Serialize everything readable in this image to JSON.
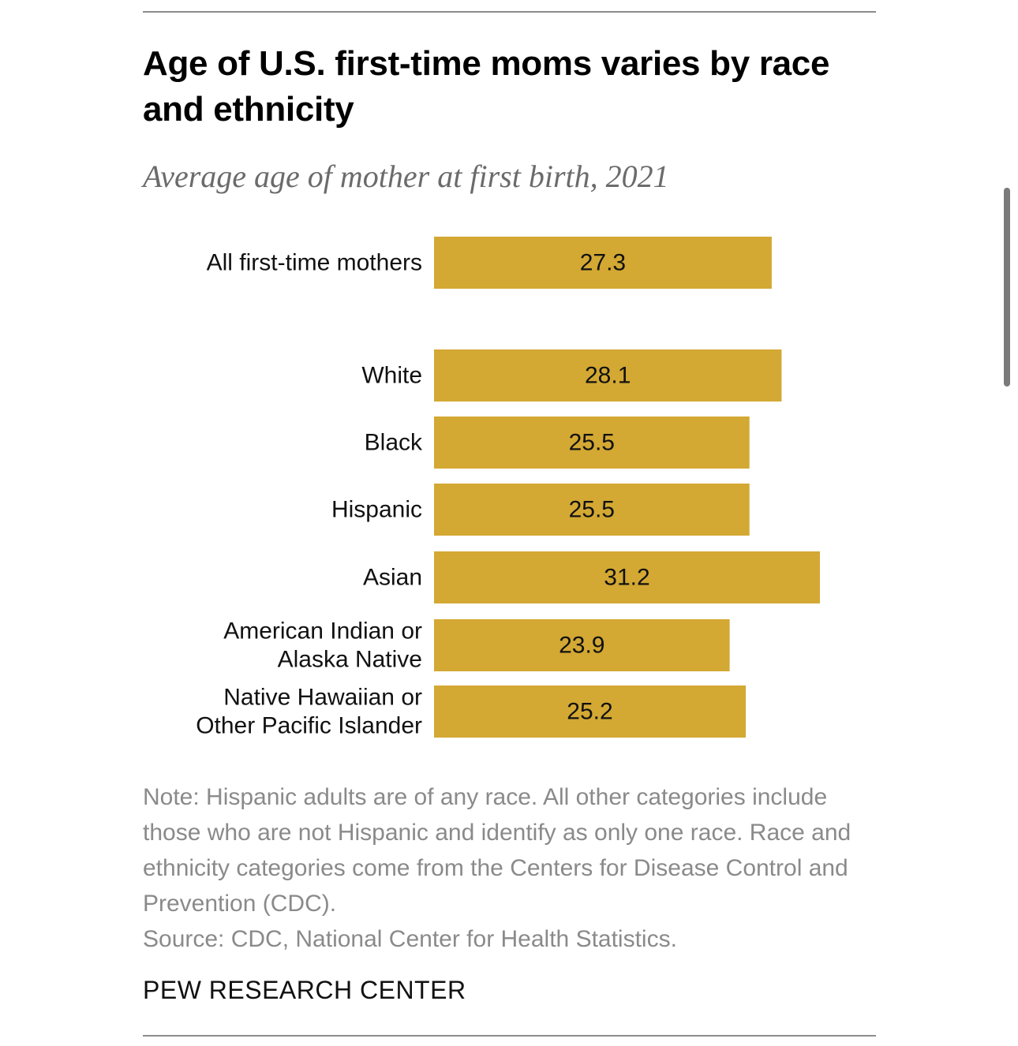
{
  "header": {
    "title": "Age of U.S. first-time moms varies by race and ethnicity",
    "subtitle": "Average age of mother at first birth, 2021"
  },
  "chart_data": {
    "type": "bar",
    "orientation": "horizontal",
    "title": "Age of U.S. first-time moms varies by race and ethnicity",
    "subtitle": "Average age of mother at first birth, 2021",
    "xlabel": "",
    "ylabel": "",
    "xlim": [
      0,
      31.2
    ],
    "grid": false,
    "bar_color": "#D3A833",
    "categories": [
      "All first-time mothers",
      "White",
      "Black",
      "Hispanic",
      "Asian",
      "American Indian or Alaska Native",
      "Native Hawaiian or Other Pacific Islander"
    ],
    "label_lines": [
      [
        "All first-time mothers"
      ],
      [
        "White"
      ],
      [
        "Black"
      ],
      [
        "Hispanic"
      ],
      [
        "Asian"
      ],
      [
        "American Indian or",
        "Alaska Native"
      ],
      [
        "Native Hawaiian or",
        "Other Pacific Islander"
      ]
    ],
    "values": [
      27.3,
      28.1,
      25.5,
      25.5,
      31.2,
      23.9,
      25.2
    ],
    "value_labels": [
      "27.3",
      "28.1",
      "25.5",
      "25.5",
      "31.2",
      "23.9",
      "25.2"
    ]
  },
  "footer": {
    "note": "Note: Hispanic adults are of any race. All other categories include those who are not Hispanic and identify as only one race. Race and ethnicity categories come from the Centers for Disease Control and Prevention (CDC).",
    "source": "Source: CDC, National Center for Health Statistics.",
    "brand": "PEW RESEARCH CENTER"
  }
}
